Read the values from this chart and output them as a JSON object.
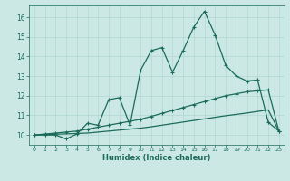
{
  "xlabel": "Humidex (Indice chaleur)",
  "bg_color": "#cce8e4",
  "line_color": "#1a6b5a",
  "grid_color": "#b0d8d0",
  "xlim": [
    -0.5,
    23.5
  ],
  "ylim": [
    9.5,
    16.6
  ],
  "yticks": [
    10,
    11,
    12,
    13,
    14,
    15,
    16
  ],
  "xticks": [
    0,
    1,
    2,
    3,
    4,
    5,
    6,
    7,
    8,
    9,
    10,
    11,
    12,
    13,
    14,
    15,
    16,
    17,
    18,
    19,
    20,
    21,
    22,
    23
  ],
  "line_jagged": [
    [
      0,
      10.0
    ],
    [
      1,
      10.0
    ],
    [
      2,
      10.0
    ],
    [
      3,
      9.8
    ],
    [
      4,
      10.05
    ],
    [
      5,
      10.6
    ],
    [
      6,
      10.5
    ],
    [
      7,
      11.8
    ],
    [
      8,
      11.9
    ],
    [
      9,
      10.5
    ],
    [
      10,
      13.3
    ],
    [
      11,
      14.3
    ],
    [
      12,
      14.45
    ],
    [
      13,
      13.2
    ],
    [
      14,
      14.3
    ],
    [
      15,
      15.5
    ],
    [
      16,
      16.3
    ],
    [
      17,
      15.1
    ],
    [
      18,
      13.55
    ],
    [
      19,
      13.0
    ],
    [
      20,
      12.75
    ],
    [
      21,
      12.8
    ],
    [
      22,
      10.65
    ],
    [
      23,
      10.2
    ]
  ],
  "line_upper": [
    [
      0,
      10.0
    ],
    [
      1,
      10.05
    ],
    [
      2,
      10.1
    ],
    [
      3,
      10.15
    ],
    [
      4,
      10.2
    ],
    [
      5,
      10.3
    ],
    [
      6,
      10.4
    ],
    [
      7,
      10.5
    ],
    [
      8,
      10.6
    ],
    [
      9,
      10.7
    ],
    [
      10,
      10.8
    ],
    [
      11,
      10.95
    ],
    [
      12,
      11.1
    ],
    [
      13,
      11.25
    ],
    [
      14,
      11.4
    ],
    [
      15,
      11.55
    ],
    [
      16,
      11.7
    ],
    [
      17,
      11.85
    ],
    [
      18,
      12.0
    ],
    [
      19,
      12.1
    ],
    [
      20,
      12.2
    ],
    [
      21,
      12.25
    ],
    [
      22,
      12.3
    ],
    [
      23,
      10.2
    ]
  ],
  "line_lower": [
    [
      0,
      10.0
    ],
    [
      1,
      10.02
    ],
    [
      2,
      10.04
    ],
    [
      3,
      10.06
    ],
    [
      4,
      10.08
    ],
    [
      5,
      10.1
    ],
    [
      6,
      10.15
    ],
    [
      7,
      10.2
    ],
    [
      8,
      10.25
    ],
    [
      9,
      10.3
    ],
    [
      10,
      10.35
    ],
    [
      11,
      10.42
    ],
    [
      12,
      10.5
    ],
    [
      13,
      10.58
    ],
    [
      14,
      10.66
    ],
    [
      15,
      10.74
    ],
    [
      16,
      10.82
    ],
    [
      17,
      10.9
    ],
    [
      18,
      10.98
    ],
    [
      19,
      11.05
    ],
    [
      20,
      11.12
    ],
    [
      21,
      11.2
    ],
    [
      22,
      11.28
    ],
    [
      23,
      10.2
    ]
  ]
}
